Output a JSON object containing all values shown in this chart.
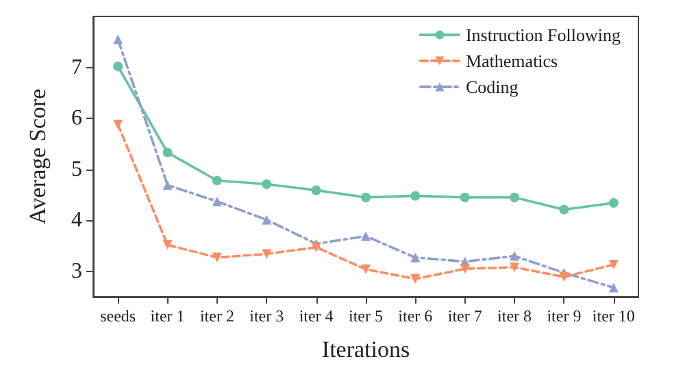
{
  "chart_data": {
    "type": "line",
    "xlabel": "Iterations",
    "ylabel": "Average Score",
    "categories": [
      "seeds",
      "iter 1",
      "iter 2",
      "iter 3",
      "iter 4",
      "iter 5",
      "iter 6",
      "iter 7",
      "iter 8",
      "iter 9",
      "iter 10"
    ],
    "series": [
      {
        "name": "Instruction Following",
        "color": "#66c2a5",
        "marker": "circle",
        "line_style": "solid",
        "values": [
          7.02,
          5.33,
          4.78,
          4.71,
          4.59,
          4.45,
          4.48,
          4.45,
          4.45,
          4.21,
          4.34
        ]
      },
      {
        "name": "Mathematics",
        "color": "#fc8d62",
        "marker": "triangle_down",
        "line_style": "dashed",
        "values": [
          5.88,
          3.52,
          3.27,
          3.34,
          3.47,
          3.04,
          2.85,
          3.05,
          3.08,
          2.89,
          3.13
        ]
      },
      {
        "name": "Coding",
        "color": "#8da0cb",
        "marker": "triangle",
        "line_style": "dashdot",
        "values": [
          7.55,
          4.69,
          4.37,
          4.01,
          3.54,
          3.69,
          3.27,
          3.19,
          3.3,
          2.97,
          2.68
        ]
      }
    ],
    "ylim": [
      2.5,
      8
    ],
    "yticks": [
      3,
      4,
      5,
      6,
      7
    ],
    "grid": false,
    "legend": "top right"
  }
}
